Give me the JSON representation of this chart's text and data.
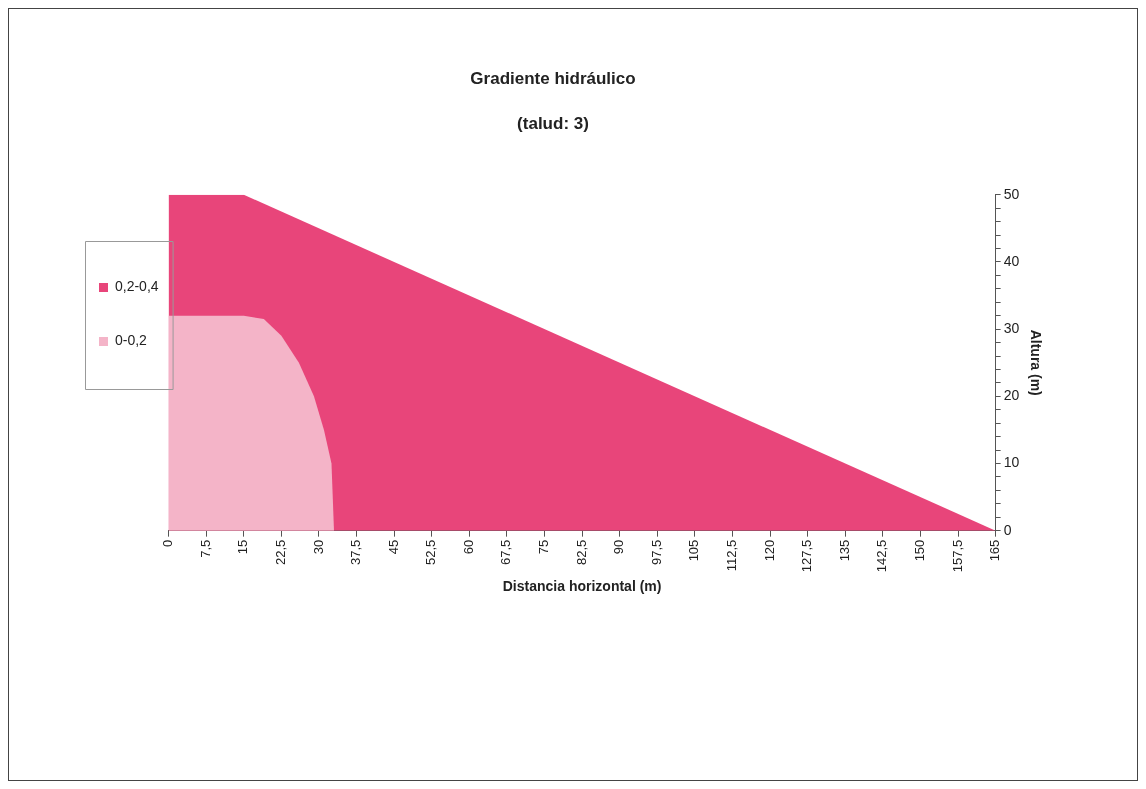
{
  "chart_data": {
    "type": "area",
    "title": "Gradiente hidráulico",
    "subtitle": "(talud: 3)",
    "xlabel": "Distancia horizontal (m)",
    "ylabel": "Altura (m)",
    "series": [
      {
        "name": "0,2-0,4",
        "color": "#e8457a",
        "x": [
          0,
          15,
          165
        ],
        "values": [
          50,
          50,
          0
        ]
      },
      {
        "name": "0-0,2",
        "color": "#f4b4c8",
        "x": [
          0,
          15,
          19,
          22.5,
          26,
          29,
          31,
          32.5,
          33
        ],
        "values": [
          32,
          32,
          31.5,
          29,
          25,
          20,
          15,
          10,
          0
        ]
      }
    ],
    "xlim": [
      0,
      165
    ],
    "xticks": [
      0,
      {
        "value": 7.5,
        "label": "7,5"
      },
      15,
      {
        "value": 22.5,
        "label": "22,5"
      },
      30,
      {
        "value": 37.5,
        "label": "37,5"
      },
      45,
      {
        "value": 52.5,
        "label": "52,5"
      },
      60,
      {
        "value": 67.5,
        "label": "67,5"
      },
      75,
      {
        "value": 82.5,
        "label": "82,5"
      },
      90,
      {
        "value": 97.5,
        "label": "97,5"
      },
      105,
      {
        "value": 112.5,
        "label": "112,5"
      },
      120,
      {
        "value": 127.5,
        "label": "127,5"
      },
      135,
      {
        "value": 142.5,
        "label": "142,5"
      },
      150,
      {
        "value": 157.5,
        "label": "157,5"
      },
      165
    ],
    "ylim": [
      0,
      50
    ],
    "yticks": [
      0,
      {
        "value": 2,
        "label": null
      },
      {
        "value": 4,
        "label": null
      },
      {
        "value": 6,
        "label": null
      },
      {
        "value": 8,
        "label": null
      },
      10,
      {
        "value": 12,
        "label": null
      },
      {
        "value": 14,
        "label": null
      },
      {
        "value": 16,
        "label": null
      },
      {
        "value": 18,
        "label": null
      },
      20,
      {
        "value": 22,
        "label": null
      },
      {
        "value": 24,
        "label": null
      },
      {
        "value": 26,
        "label": null
      },
      {
        "value": 28,
        "label": null
      },
      30,
      {
        "value": 32,
        "label": null
      },
      {
        "value": 34,
        "label": null
      },
      {
        "value": 36,
        "label": null
      },
      {
        "value": 38,
        "label": null
      },
      40,
      {
        "value": 42,
        "label": null
      },
      {
        "value": 44,
        "label": null
      },
      {
        "value": 46,
        "label": null
      },
      {
        "value": 48,
        "label": null
      },
      50
    ],
    "legend": "left",
    "grid": false
  }
}
